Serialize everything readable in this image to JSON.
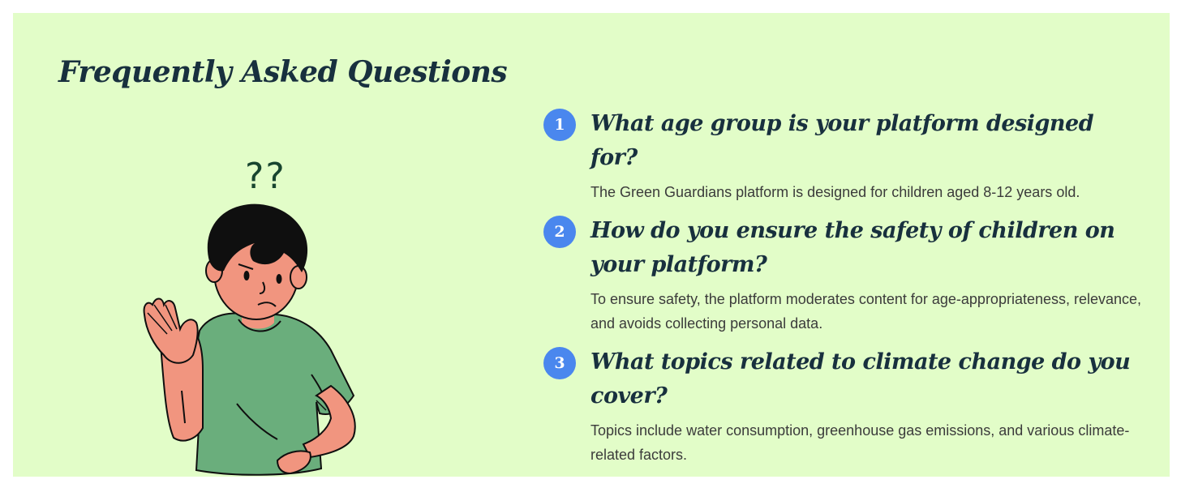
{
  "section": {
    "title": "Frequently Asked Questions"
  },
  "illustration": {
    "icon": "confused-boy-illustration",
    "marks": "??"
  },
  "faq": [
    {
      "number": "1",
      "question": "What age group is your platform designed for?",
      "answer": "The Green Guardians platform is designed for children aged 8-12 years old."
    },
    {
      "number": "2",
      "question": "How do you ensure the safety of children on your platform?",
      "answer": "To ensure safety, the platform moderates content for age-appropriateness, relevance, and avoids collecting personal data."
    },
    {
      "number": "3",
      "question": "What topics related to climate change do you cover?",
      "answer": "Topics include water consumption, greenhouse gas emissions, and various climate-related factors."
    }
  ],
  "colors": {
    "background": "#e2fdc8",
    "heading": "#18303e",
    "badge": "#4a87ee",
    "shirt": "#6aae7c",
    "skin": "#f1957f",
    "hair": "#0f0f0f"
  }
}
